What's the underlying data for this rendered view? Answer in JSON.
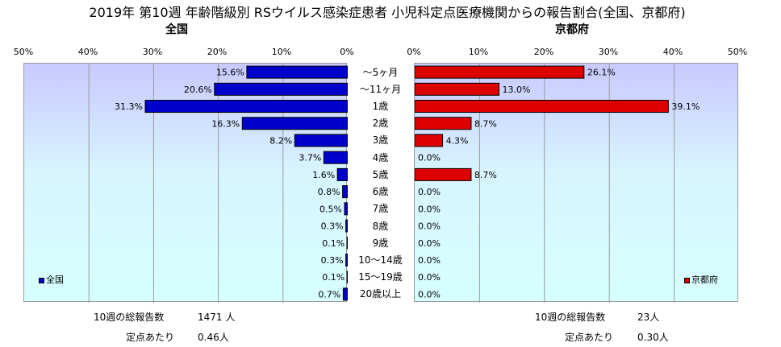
{
  "title": "2019年 第10週 年齢階級別 RSウイルス感染症患者 小児科定点医療機関からの報告割合(全国、京都府)",
  "categories": [
    "～5ヶ月",
    "～11ヶ月",
    "1歳",
    "2歳",
    "3歳",
    "4歳",
    "5歳",
    "6歳",
    "7歳",
    "8歳",
    "9歳",
    "10～14歳",
    "15～19歳",
    "20歳以上"
  ],
  "axis_ticks": [
    "50%",
    "40%",
    "30%",
    "20%",
    "10%",
    "0%"
  ],
  "axis_ticks_right": [
    "0%",
    "10%",
    "20%",
    "30%",
    "40%",
    "50%"
  ],
  "chart_data": [
    {
      "type": "bar",
      "orientation": "horizontal",
      "title": "全国",
      "direction": "right-to-left",
      "xlim": [
        0,
        50
      ],
      "unit": "%",
      "color": "#0000cc",
      "legend": "全国",
      "legend_position": "bottom-left",
      "categories": [
        "～5ヶ月",
        "～11ヶ月",
        "1歳",
        "2歳",
        "3歳",
        "4歳",
        "5歳",
        "6歳",
        "7歳",
        "8歳",
        "9歳",
        "10～14歳",
        "15～19歳",
        "20歳以上"
      ],
      "values": [
        15.6,
        20.6,
        31.3,
        16.3,
        8.2,
        3.7,
        1.6,
        0.8,
        0.5,
        0.3,
        0.1,
        0.3,
        0.1,
        0.7
      ],
      "labels": [
        "15.6%",
        "20.6%",
        "31.3%",
        "16.3%",
        "8.2%",
        "3.7%",
        "1.6%",
        "0.8%",
        "0.5%",
        "0.3%",
        "0.1%",
        "0.3%",
        "0.1%",
        "0.7%"
      ]
    },
    {
      "type": "bar",
      "orientation": "horizontal",
      "title": "京都府",
      "direction": "left-to-right",
      "xlim": [
        0,
        50
      ],
      "unit": "%",
      "color": "#dd0000",
      "legend": "京都府",
      "legend_position": "bottom-right",
      "categories": [
        "～5ヶ月",
        "～11ヶ月",
        "1歳",
        "2歳",
        "3歳",
        "4歳",
        "5歳",
        "6歳",
        "7歳",
        "8歳",
        "9歳",
        "10～14歳",
        "15～19歳",
        "20歳以上"
      ],
      "values": [
        26.1,
        13.0,
        39.1,
        8.7,
        4.3,
        0.0,
        8.7,
        0.0,
        0.0,
        0.0,
        0.0,
        0.0,
        0.0,
        0.0
      ],
      "labels": [
        "26.1%",
        "13.0%",
        "39.1%",
        "8.7%",
        "4.3%",
        "0.0%",
        "8.7%",
        "0.0%",
        "0.0%",
        "0.0%",
        "0.0%",
        "0.0%",
        "0.0%",
        "0.0%"
      ]
    }
  ],
  "summary": {
    "national": {
      "reports_label": "10週の総報告数",
      "reports_value": "1471 人",
      "per_site_label": "定点あたり",
      "per_site_value": "0.46人"
    },
    "kyoto": {
      "reports_label": "10週の総報告数",
      "reports_value": "23人",
      "per_site_label": "定点あたり",
      "per_site_value": "0.30人"
    }
  }
}
